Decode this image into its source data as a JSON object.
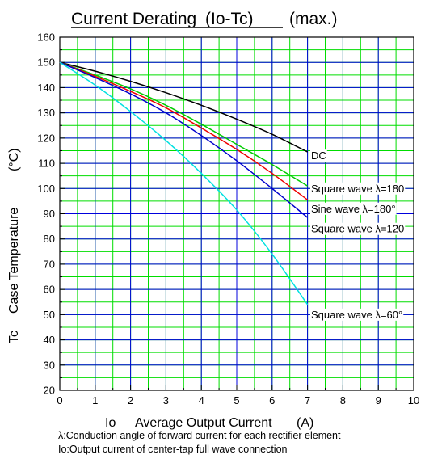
{
  "chart_data": {
    "type": "line",
    "title_main": "Current Derating",
    "title_paren": "(Io-Tc)",
    "title_suffix": "(max.)",
    "xlabel_symbol": "Io",
    "xlabel": "Average Output Current",
    "xlabel_unit": "(A)",
    "ylabel_symbol": "Tc",
    "ylabel": "Case Temperature",
    "ylabel_unit": "(°C)",
    "xlim": [
      0,
      10
    ],
    "ylim": [
      20,
      160
    ],
    "x_ticks": [
      0,
      1,
      2,
      3,
      4,
      5,
      6,
      7,
      8,
      9,
      10
    ],
    "y_ticks": [
      20,
      30,
      40,
      50,
      60,
      70,
      80,
      90,
      100,
      110,
      120,
      130,
      140,
      150,
      160
    ],
    "grid": {
      "major": true,
      "minor_x": true,
      "minor_y": true
    },
    "series": [
      {
        "name": "DC",
        "color": "#000000",
        "x": [
          0,
          1,
          2,
          3,
          4,
          5,
          6,
          7
        ],
        "y": [
          150,
          146.5,
          142.5,
          138,
          133,
          127.5,
          121.5,
          114.5
        ]
      },
      {
        "name": "Square wave λ=180°",
        "color": "#00cc00",
        "x": [
          0,
          1,
          2,
          3,
          4,
          5,
          6,
          7
        ],
        "y": [
          150,
          145,
          139.5,
          133,
          125.5,
          117.5,
          109.5,
          101
        ]
      },
      {
        "name": "Sine wave λ=180°",
        "color": "#ee0000",
        "x": [
          0,
          1,
          2,
          3,
          4,
          5,
          6,
          7
        ],
        "y": [
          150,
          144.5,
          138.5,
          132,
          124,
          115.5,
          106,
          95.5
        ]
      },
      {
        "name": "Square wave λ=120°",
        "color": "#0000cc",
        "x": [
          0,
          1,
          2,
          3,
          4,
          5,
          6,
          7
        ],
        "y": [
          150,
          144,
          137.5,
          130,
          121,
          111,
          100,
          88.5
        ]
      },
      {
        "name": "Square wave λ=60°",
        "color": "#00e0e0",
        "x": [
          0,
          1,
          2,
          3,
          4,
          5,
          6,
          7
        ],
        "y": [
          150,
          141,
          130.5,
          119,
          106,
          91.5,
          74,
          54
        ]
      }
    ],
    "series_labels": [
      {
        "text": "DC",
        "x": 7.1,
        "y": 113
      },
      {
        "text": "Square wave λ=180",
        "x": 7.1,
        "y": 100
      },
      {
        "text": "Sine wave λ=180°",
        "x": 7.1,
        "y": 92
      },
      {
        "text": "Square wave λ=120",
        "x": 7.1,
        "y": 84
      },
      {
        "text": "Square wave λ=60°",
        "x": 7.1,
        "y": 50
      }
    ]
  },
  "notes": [
    "λ:Conduction angle of forward current for each rectifier element",
    "Io:Output current of center-tap full wave connection"
  ]
}
